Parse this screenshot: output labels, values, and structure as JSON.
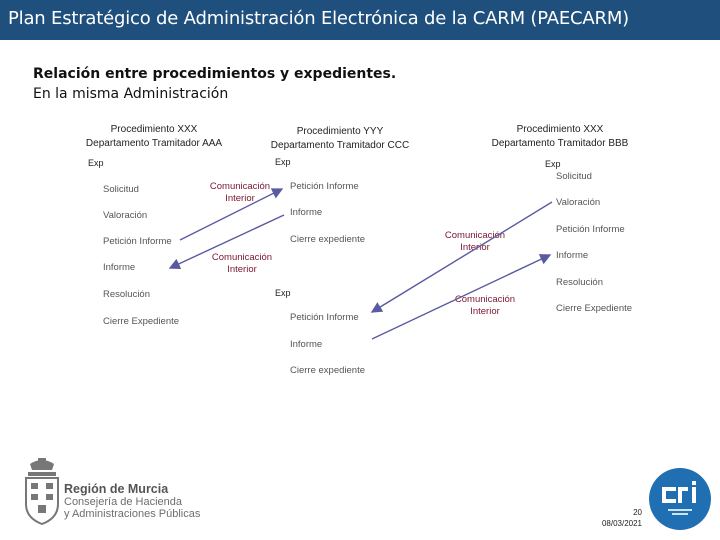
{
  "title": "Plan Estratégico de Administración Electrónica de la CARM (PAECARM)",
  "heading": {
    "line1": "Relación entre procedimientos y expedientes.",
    "line2": "En la misma Administración"
  },
  "columns": {
    "left": {
      "procedure": "Procedimiento XXX",
      "department": "Departamento Tramitador AAA",
      "exp": "Exp",
      "steps": [
        "Solicitud",
        "Valoración",
        "Petición Informe",
        "Informe",
        "Resolución",
        "Cierre Expediente"
      ]
    },
    "middle": {
      "procedure": "Procedimiento YYY",
      "department": "Departamento Tramitador CCC",
      "exp_top": "Exp",
      "steps_top": [
        "Petición Informe",
        "Informe",
        "Cierre expediente"
      ],
      "exp_bottom": "Exp",
      "steps_bottom": [
        "Petición Informe",
        "Informe",
        "Cierre expediente"
      ]
    },
    "right": {
      "procedure": "Procedimiento XXX",
      "department": "Departamento Tramitador BBB",
      "exp": "Exp",
      "steps": [
        "Solicitud",
        "Valoración",
        "Petición Informe",
        "Informe",
        "Resolución",
        "Cierre Expediente"
      ]
    }
  },
  "communications": {
    "c1": {
      "line1": "Comunicación",
      "line2": "Interior"
    },
    "c2": {
      "line1": "Comunicación",
      "line2": "Interior"
    },
    "c3": {
      "line1": "Comunicación",
      "line2": "Interior"
    },
    "c4": {
      "line1": "Comunicación",
      "line2": "Interior"
    }
  },
  "footer": {
    "org_name": "Región de Murcia",
    "org_line2": "Consejería de Hacienda",
    "org_line3": "y Administraciones Públicas",
    "page": "20",
    "date": "08/03/2021",
    "cri_logo_text": "CRI"
  },
  "colors": {
    "title_bar": "#1f4f7c",
    "communication_text": "#7a1630",
    "arrow": "#5a5aa0",
    "cri_blue": "#1f6fb2"
  }
}
